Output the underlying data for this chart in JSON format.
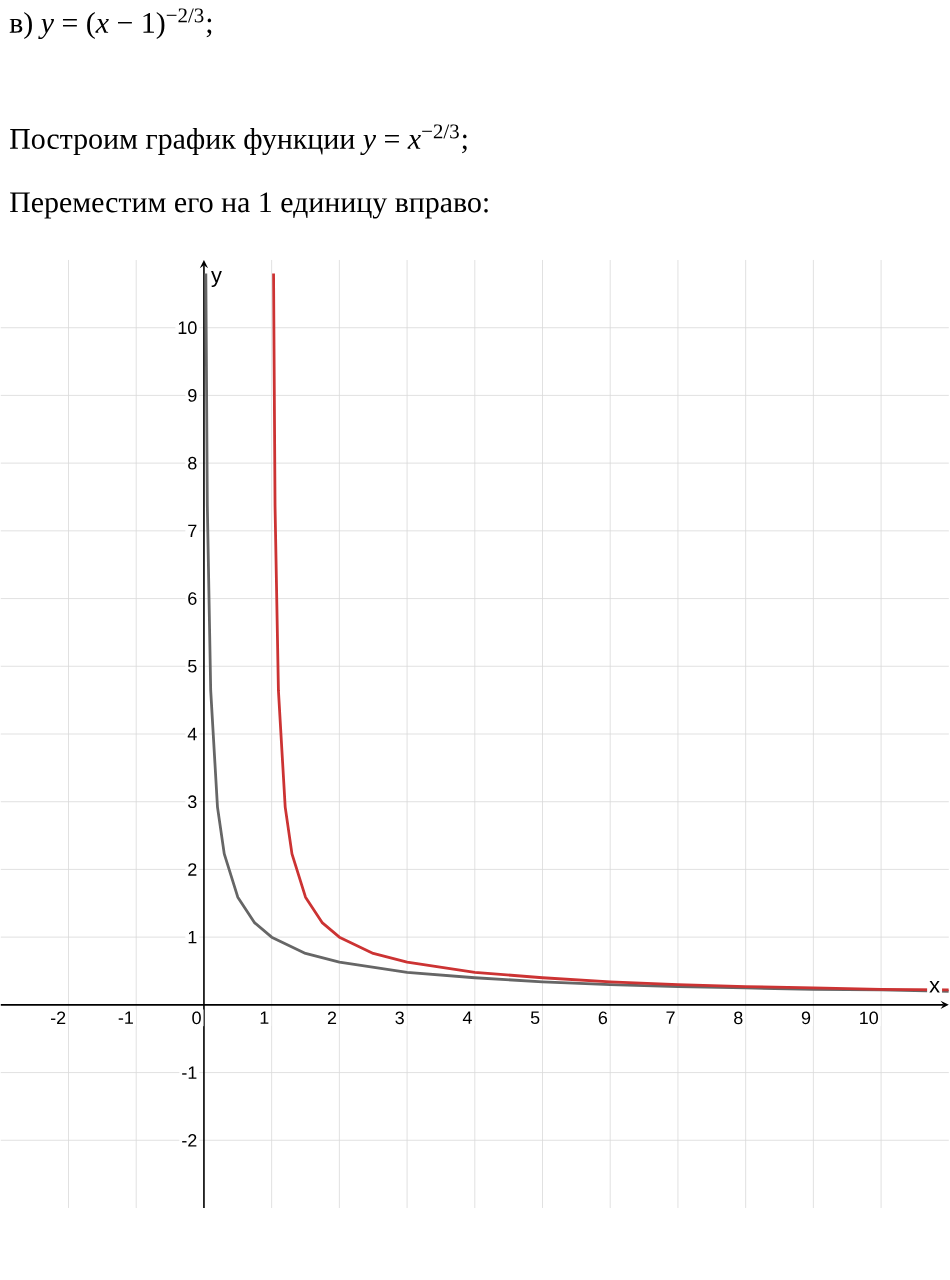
{
  "chart_data": {
    "type": "line",
    "annotations": [
      "в) *y* = (*x* − 1)$^{−2/3}$;",
      "Построим график функции *y* = *x*$^{−2/3}$;",
      "Переместим его на 1 единицу вправо:"
    ],
    "xlabel": "x",
    "ylabel": "y",
    "xlim": [
      -3,
      11
    ],
    "ylim": [
      -3,
      11
    ],
    "xticks": [
      -2,
      -1,
      0,
      1,
      2,
      3,
      4,
      5,
      6,
      7,
      8,
      9,
      10
    ],
    "yticks": [
      -2,
      -1,
      1,
      2,
      3,
      4,
      5,
      6,
      7,
      8,
      9,
      10
    ],
    "grid": true,
    "legend": false,
    "marker": "none",
    "line_style": "solid",
    "series": [
      {
        "color": "#666666",
        "x": [
          0.028,
          0.05,
          0.1,
          0.2,
          0.3,
          0.5,
          0.75,
          1,
          1.5,
          2,
          3,
          4,
          5,
          6,
          7,
          8,
          9,
          10,
          11
        ],
        "values": [
          10.8,
          7.37,
          4.64,
          2.92,
          2.23,
          1.59,
          1.21,
          1,
          0.76,
          0.63,
          0.48,
          0.4,
          0.34,
          0.3,
          0.27,
          0.25,
          0.23,
          0.22,
          0.2
        ]
      },
      {
        "color": "#cc3333",
        "x": [
          1.028,
          1.05,
          1.1,
          1.2,
          1.3,
          1.5,
          1.75,
          2,
          2.5,
          3,
          4,
          5,
          6,
          7,
          8,
          9,
          10,
          11
        ],
        "values": [
          10.8,
          7.37,
          4.64,
          2.92,
          2.23,
          1.59,
          1.21,
          1,
          0.76,
          0.63,
          0.48,
          0.4,
          0.34,
          0.3,
          0.27,
          0.25,
          0.23,
          0.22
        ]
      }
    ]
  }
}
